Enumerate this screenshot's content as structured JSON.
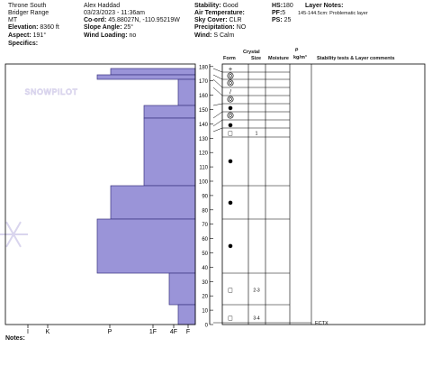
{
  "header": {
    "col1": {
      "location": "Throne South",
      "range": "Bridger Range",
      "state": "MT",
      "elevation_label": "Elevation:",
      "elevation": "8360 ft",
      "aspect_label": "Aspect:",
      "aspect": "191°",
      "specifics_label": "Specifics:"
    },
    "col2": {
      "observer": "Alex Haddad",
      "datetime": "03/23/2023 - 11:36am",
      "coord_label": "Co-ord:",
      "coord": "45.88027N, -110.95219W",
      "slope_label": "Slope Angle:",
      "slope": "25°",
      "wind_loading_label": "Wind Loading:",
      "wind_loading": "no"
    },
    "col3": {
      "stability_label": "Stability:",
      "stability": "Good",
      "air_temp_label": "Air Temperature:",
      "sky_label": "Sky Cover:",
      "sky": "CLR",
      "precip_label": "Precipitation:",
      "precip": "NO",
      "wind_label": "Wind:",
      "wind": "S Calm"
    },
    "col4": {
      "hs_label": "HS:",
      "hs": "180",
      "pf_label": "PF:",
      "pf": "5",
      "ps_label": "PS:",
      "ps": "25"
    },
    "layer_notes_label": "Layer Notes:",
    "layer_note": "145-144.5cm: Problematic layer"
  },
  "watermark": "SNOWPILOT",
  "columns": {
    "crystal": "Crystal",
    "form": "Form",
    "size": "Size",
    "moisture": "Moisture",
    "rho": "ρ",
    "density_unit": "kg/m³",
    "stability": "Stability tests & Layer comments"
  },
  "hardness_labels": [
    "I",
    "K",
    "P",
    "1F",
    "4F",
    "F"
  ],
  "depth_ticks": [
    "180",
    "170",
    "160",
    "150",
    "140",
    "130",
    "120",
    "110",
    "100",
    "90",
    "80",
    "70",
    "60",
    "50",
    "40",
    "30",
    "20",
    "10",
    "0"
  ],
  "layers": [
    {
      "form": "+",
      "size": ""
    },
    {
      "form": "depth-hoar",
      "size": ""
    },
    {
      "form": "depth-hoar",
      "size": ""
    },
    {
      "form": "/",
      "size": ""
    },
    {
      "form": "depth-hoar",
      "size": ""
    },
    {
      "form": "●",
      "size": ""
    },
    {
      "form": "depth-hoar",
      "size": ""
    },
    {
      "form": "●",
      "size": ""
    },
    {
      "form": "□",
      "size": "1"
    },
    {
      "form": "●",
      "size": ""
    },
    {
      "form": "●",
      "size": ""
    },
    {
      "form": "●",
      "size": ""
    },
    {
      "form": "□",
      "size": "2-3"
    },
    {
      "form": "□",
      "size": "3-4"
    }
  ],
  "stability_test": "ECTX",
  "notes_label": "Notes:"
}
